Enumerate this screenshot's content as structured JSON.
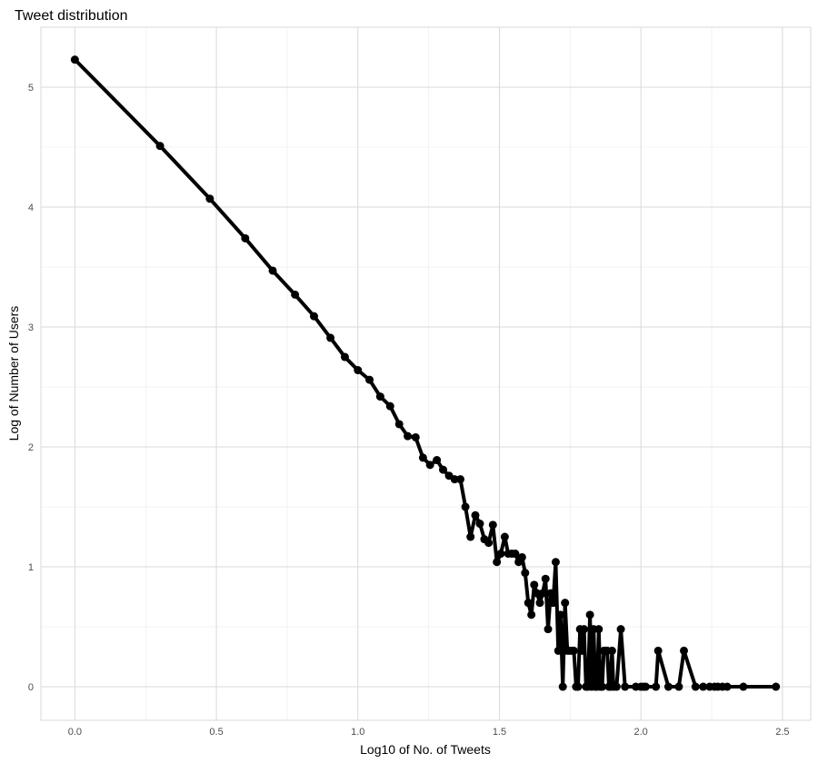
{
  "chart_data": {
    "type": "line",
    "title": "Tweet distribution",
    "xlabel": "Log10 of No. of Tweets",
    "ylabel": "Log of Number of Users",
    "xlim": [
      -0.12,
      2.6
    ],
    "ylim": [
      -0.28,
      5.5
    ],
    "xticks": [
      0.0,
      0.5,
      1.0,
      1.5,
      2.0,
      2.5
    ],
    "xtick_labels": [
      "0.0",
      "0.5",
      "1.0",
      "1.5",
      "2.0",
      "2.5"
    ],
    "yticks": [
      0,
      1,
      2,
      3,
      4,
      5
    ],
    "ytick_labels": [
      "0",
      "1",
      "2",
      "3",
      "4",
      "5"
    ],
    "grid": true,
    "legend": "none",
    "line_color": "#000000",
    "x": [
      0.0,
      0.301,
      0.477,
      0.602,
      0.699,
      0.778,
      0.845,
      0.903,
      0.954,
      1.0,
      1.041,
      1.079,
      1.114,
      1.146,
      1.176,
      1.204,
      1.23,
      1.255,
      1.279,
      1.301,
      1.322,
      1.342,
      1.362,
      1.38,
      1.398,
      1.415,
      1.431,
      1.447,
      1.462,
      1.477,
      1.491,
      1.505,
      1.519,
      1.531,
      1.544,
      1.556,
      1.568,
      1.58,
      1.591,
      1.602,
      1.613,
      1.623,
      1.633,
      1.643,
      1.653,
      1.663,
      1.672,
      1.681,
      1.69,
      1.699,
      1.708,
      1.716,
      1.724,
      1.732,
      1.74,
      1.748,
      1.756,
      1.763,
      1.771,
      1.778,
      1.785,
      1.792,
      1.799,
      1.806,
      1.813,
      1.82,
      1.826,
      1.833,
      1.839,
      1.845,
      1.851,
      1.857,
      1.863,
      1.869,
      1.875,
      1.881,
      1.887,
      1.892,
      1.898,
      1.903,
      1.914,
      1.929,
      1.944,
      1.982,
      2.0,
      2.009,
      2.017,
      2.053,
      2.061,
      2.097,
      2.134,
      2.152,
      2.193,
      2.22,
      2.243,
      2.26,
      2.272,
      2.288,
      2.305,
      2.362,
      2.477
    ],
    "y": [
      5.23,
      4.51,
      4.07,
      3.74,
      3.47,
      3.27,
      3.09,
      2.91,
      2.75,
      2.64,
      2.56,
      2.42,
      2.34,
      2.19,
      2.09,
      2.08,
      1.91,
      1.85,
      1.89,
      1.81,
      1.76,
      1.73,
      1.73,
      1.5,
      1.25,
      1.43,
      1.36,
      1.23,
      1.2,
      1.35,
      1.04,
      1.11,
      1.25,
      1.11,
      1.11,
      1.11,
      1.04,
      1.08,
      0.95,
      0.7,
      0.6,
      0.85,
      0.78,
      0.7,
      0.78,
      0.9,
      0.48,
      0.78,
      0.7,
      1.04,
      0.3,
      0.6,
      0.0,
      0.7,
      0.3,
      0.3,
      0.3,
      0.3,
      0.0,
      0.0,
      0.48,
      0.3,
      0.48,
      0.0,
      0.0,
      0.6,
      0.0,
      0.48,
      0.0,
      0.0,
      0.48,
      0.0,
      0.0,
      0.3,
      0.3,
      0.3,
      0.0,
      0.0,
      0.3,
      0.0,
      0.0,
      0.48,
      0.0,
      0.0,
      0.0,
      0.0,
      0.0,
      0.0,
      0.3,
      0.0,
      0.0,
      0.3,
      0.0,
      0.0,
      0.0,
      0.0,
      0.0,
      0.0,
      0.0,
      0.0,
      0.0
    ]
  }
}
